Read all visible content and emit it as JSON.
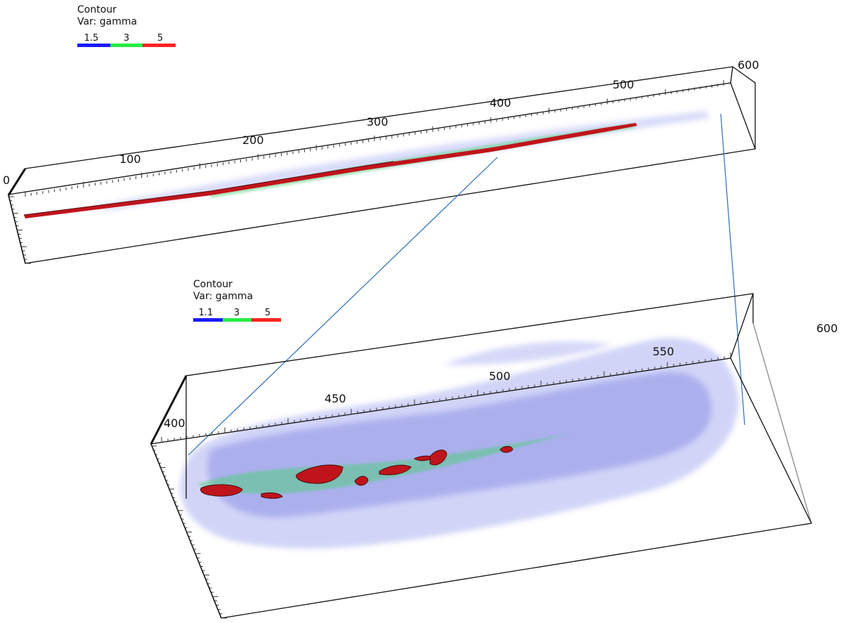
{
  "legends": [
    {
      "title": "Contour",
      "var_label": "Var: gamma",
      "ticks": [
        "1.5",
        "3",
        "5"
      ],
      "colors": [
        "#1a1aff",
        "#22ee44",
        "#ff2222"
      ]
    },
    {
      "title": "Contour",
      "var_label": "Var: gamma",
      "ticks": [
        "1.1",
        "3",
        "5"
      ],
      "colors": [
        "#1a1aff",
        "#22ee44",
        "#ff2222"
      ]
    }
  ],
  "top_box": {
    "axis_labels": [
      "0",
      "100",
      "200",
      "300",
      "400",
      "500",
      "600"
    ]
  },
  "bottom_box": {
    "axis_labels": [
      "400",
      "450",
      "500",
      "550",
      "600"
    ]
  },
  "colors": {
    "jet_core": "#c0141c",
    "jet_mid": "#3fd36a",
    "jet_outer": "#6f78e8",
    "frame": "#111111",
    "connector": "#2f6fb5"
  }
}
